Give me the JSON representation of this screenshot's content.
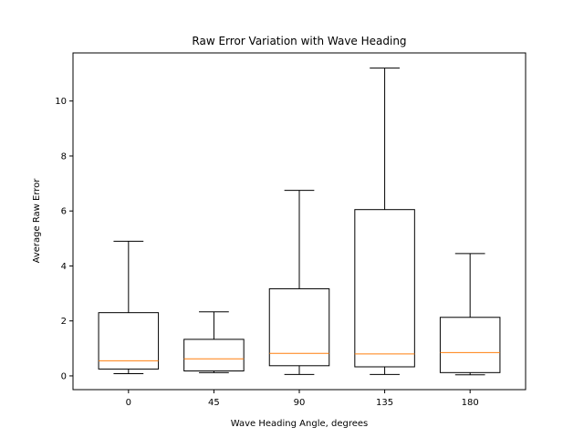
{
  "chart_data": {
    "type": "box",
    "title": "Raw Error Variation with Wave Heading",
    "xlabel": "Wave Heading Angle, degrees",
    "ylabel": "Average Raw Error",
    "categories": [
      "0",
      "45",
      "90",
      "135",
      "180"
    ],
    "yticks": [
      "0",
      "2",
      "4",
      "6",
      "8",
      "10"
    ],
    "ylim": [
      -0.5,
      11.75
    ],
    "grid": false,
    "boxes": [
      {
        "category": "0",
        "whisker_low": 0.08,
        "q1": 0.25,
        "median": 0.55,
        "q3": 2.3,
        "whisker_high": 4.9
      },
      {
        "category": "45",
        "whisker_low": 0.12,
        "q1": 0.18,
        "median": 0.62,
        "q3": 1.33,
        "whisker_high": 2.33
      },
      {
        "category": "90",
        "whisker_low": 0.05,
        "q1": 0.37,
        "median": 0.82,
        "q3": 3.17,
        "whisker_high": 6.75
      },
      {
        "category": "135",
        "whisker_low": 0.05,
        "q1": 0.33,
        "median": 0.8,
        "q3": 6.05,
        "whisker_high": 11.2
      },
      {
        "category": "180",
        "whisker_low": 0.04,
        "q1": 0.12,
        "median": 0.85,
        "q3": 2.13,
        "whisker_high": 4.45
      }
    ],
    "colors": {
      "box": "#000000",
      "median": "#ff7f0e",
      "background": "#ffffff"
    }
  }
}
